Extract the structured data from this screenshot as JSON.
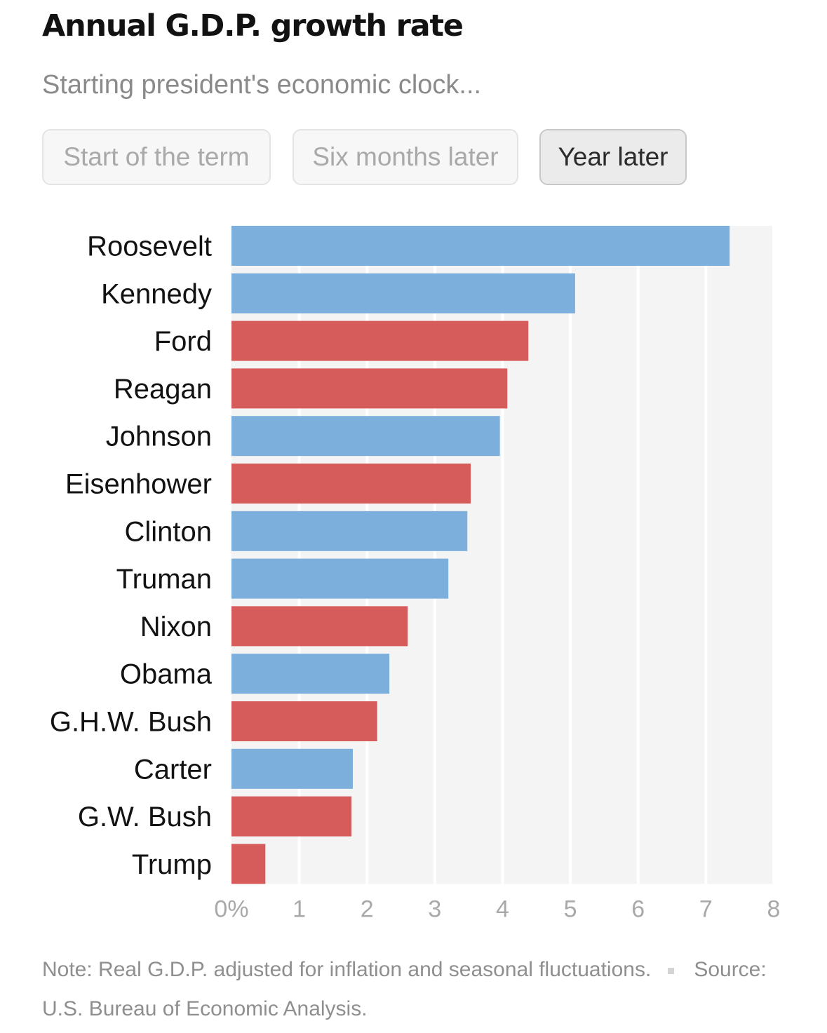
{
  "header": {
    "title": "Annual G.D.P. growth rate",
    "subtitle": "Starting president's economic clock..."
  },
  "toggles": [
    {
      "label": "Start of the term",
      "active": false
    },
    {
      "label": "Six months later",
      "active": false
    },
    {
      "label": "Year later",
      "active": true
    }
  ],
  "colors": {
    "democrat": "#7cafdc",
    "republican": "#d65b5b",
    "plot_background": "#f4f4f4",
    "gridline": "#ffffff"
  },
  "chart_data": {
    "type": "bar",
    "orientation": "horizontal",
    "categories": [
      "Roosevelt",
      "Kennedy",
      "Ford",
      "Reagan",
      "Johnson",
      "Eisenhower",
      "Clinton",
      "Truman",
      "Nixon",
      "Obama",
      "G.H.W. Bush",
      "Carter",
      "G.W. Bush",
      "Trump"
    ],
    "values": [
      7.35,
      5.07,
      4.38,
      4.07,
      3.96,
      3.53,
      3.48,
      3.2,
      2.6,
      2.33,
      2.15,
      1.79,
      1.77,
      0.5
    ],
    "party": [
      "democrat",
      "democrat",
      "republican",
      "republican",
      "democrat",
      "republican",
      "democrat",
      "democrat",
      "republican",
      "democrat",
      "republican",
      "democrat",
      "republican",
      "republican"
    ],
    "xlim": [
      0,
      8
    ],
    "xticks": [
      0,
      1,
      2,
      3,
      4,
      5,
      6,
      7,
      8
    ],
    "xtick_labels": [
      "0%",
      "1",
      "2",
      "3",
      "4",
      "5",
      "6",
      "7",
      "8"
    ],
    "grid": true
  },
  "footer": {
    "note": "Note: Real G.D.P. adjusted for inflation and seasonal fluctuations.",
    "source": "Source: U.S. Bureau of Economic Analysis."
  }
}
